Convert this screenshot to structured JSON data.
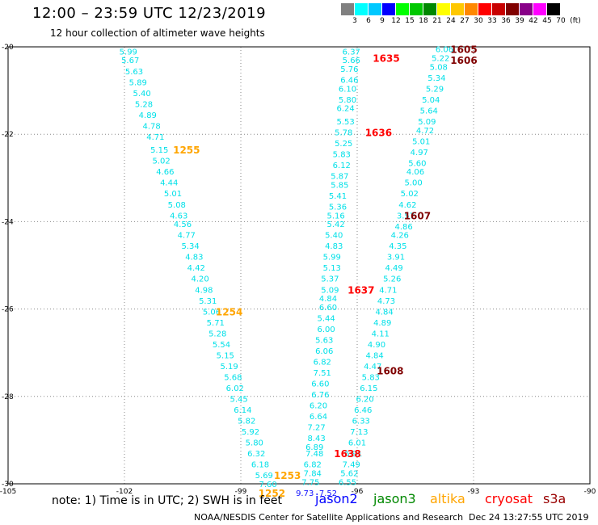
{
  "header": {
    "title": "12:00 – 23:59 UTC 12/23/2019",
    "subtitle": "12 hour collection of altimeter wave heights"
  },
  "legend": {
    "colors": [
      "#808080",
      "#00ffff",
      "#00c8ff",
      "#0000ff",
      "#00ff00",
      "#00c800",
      "#008800",
      "#ffff00",
      "#ffc800",
      "#ff8800",
      "#ff0000",
      "#c80000",
      "#800000",
      "#880088",
      "#ff00ff",
      "#000000"
    ],
    "labels": [
      "3",
      "6",
      "9",
      "12",
      "15",
      "18",
      "21",
      "24",
      "27",
      "30",
      "33",
      "36",
      "39",
      "42",
      "45",
      "70",
      "(ft)"
    ]
  },
  "chart_data": {
    "type": "scatter",
    "xlim": [
      -105,
      -90
    ],
    "ylim": [
      -30,
      -20
    ],
    "x_ticks": [
      -105,
      -102,
      -99,
      -96,
      -93,
      -90
    ],
    "y_ticks": [
      -20,
      -22,
      -24,
      -26,
      -28,
      -30
    ],
    "grid": true,
    "colors": {
      "cyan": "#00e0e8",
      "blue": "#1010ff",
      "orange": "#ffa500",
      "red": "#ff0000",
      "darkred": "#800000",
      "jason2": "#0000ff",
      "jason3": "#008800",
      "altika": "#ffa500",
      "cryosat": "#ff0000",
      "s3a": "#990000"
    },
    "tracks": [
      {
        "satellite": "altika",
        "points": [
          {
            "lon": -101.9,
            "lat": -20.1,
            "value": "5.99"
          },
          {
            "lon": -101.85,
            "lat": -20.3,
            "value": "5.67"
          },
          {
            "lon": -101.75,
            "lat": -20.55,
            "value": "5.63"
          },
          {
            "lon": -101.65,
            "lat": -20.8,
            "value": "5.89"
          },
          {
            "lon": -101.55,
            "lat": -21.05,
            "value": "5.40"
          },
          {
            "lon": -101.5,
            "lat": -21.3,
            "value": "5.28"
          },
          {
            "lon": -101.4,
            "lat": -21.55,
            "value": "4.89"
          },
          {
            "lon": -101.3,
            "lat": -21.8,
            "value": "4.78"
          },
          {
            "lon": -101.2,
            "lat": -22.05,
            "value": "4.71"
          },
          {
            "lon": -101.1,
            "lat": -22.35,
            "value": "5.15"
          },
          {
            "lon": -101.05,
            "lat": -22.6,
            "value": "5.02"
          },
          {
            "lon": -100.95,
            "lat": -22.85,
            "value": "4.66"
          },
          {
            "lon": -100.85,
            "lat": -23.1,
            "value": "4.44"
          },
          {
            "lon": -100.75,
            "lat": -23.35,
            "value": "5.01"
          },
          {
            "lon": -100.65,
            "lat": -23.6,
            "value": "5.08"
          },
          {
            "lon": -100.6,
            "lat": -23.85,
            "value": "4.63"
          },
          {
            "lon": -100.5,
            "lat": -24.05,
            "value": "4.56"
          },
          {
            "lon": -100.4,
            "lat": -24.3,
            "value": "4.77"
          },
          {
            "lon": -100.3,
            "lat": -24.55,
            "value": "5.34"
          },
          {
            "lon": -100.2,
            "lat": -24.8,
            "value": "4.83"
          },
          {
            "lon": -100.15,
            "lat": -25.05,
            "value": "4.42"
          },
          {
            "lon": -100.05,
            "lat": -25.3,
            "value": "4.20"
          },
          {
            "lon": -99.95,
            "lat": -25.55,
            "value": "4.98"
          },
          {
            "lon": -99.85,
            "lat": -25.8,
            "value": "5.31"
          },
          {
            "lon": -99.75,
            "lat": -26.05,
            "value": "5.06"
          },
          {
            "lon": -99.65,
            "lat": -26.3,
            "value": "5.71"
          },
          {
            "lon": -99.6,
            "lat": -26.55,
            "value": "5.28"
          },
          {
            "lon": -99.5,
            "lat": -26.8,
            "value": "5.54"
          },
          {
            "lon": -99.4,
            "lat": -27.05,
            "value": "5.15"
          },
          {
            "lon": -99.3,
            "lat": -27.3,
            "value": "5.19"
          },
          {
            "lon": -99.2,
            "lat": -27.55,
            "value": "5.68"
          },
          {
            "lon": -99.15,
            "lat": -27.8,
            "value": "6.02"
          },
          {
            "lon": -99.05,
            "lat": -28.05,
            "value": "5.45"
          },
          {
            "lon": -98.95,
            "lat": -28.3,
            "value": "6.14"
          },
          {
            "lon": -98.85,
            "lat": -28.55,
            "value": "5.82"
          },
          {
            "lon": -98.75,
            "lat": -28.8,
            "value": "5.92"
          },
          {
            "lon": -98.65,
            "lat": -29.05,
            "value": "5.80"
          },
          {
            "lon": -98.6,
            "lat": -29.3,
            "value": "6.32"
          },
          {
            "lon": -98.5,
            "lat": -29.55,
            "value": "6.18"
          },
          {
            "lon": -98.4,
            "lat": -29.8,
            "value": "5.69"
          },
          {
            "lon": -98.3,
            "lat": -30.0,
            "value": "7.60"
          }
        ]
      },
      {
        "satellite": "altika",
        "points": [
          {
            "lon": -96.15,
            "lat": -20.1,
            "value": "6.37"
          },
          {
            "lon": -96.15,
            "lat": -20.3,
            "value": "5.66"
          },
          {
            "lon": -96.2,
            "lat": -20.5,
            "value": "5.76"
          },
          {
            "lon": -96.2,
            "lat": -20.75,
            "value": "6.46"
          },
          {
            "lon": -96.25,
            "lat": -20.95,
            "value": "6.10"
          },
          {
            "lon": -96.25,
            "lat": -21.2,
            "value": "5.80"
          },
          {
            "lon": -96.3,
            "lat": -21.4,
            "value": "6.24"
          },
          {
            "lon": -96.3,
            "lat": -21.7,
            "value": "5.53"
          },
          {
            "lon": -96.35,
            "lat": -21.95,
            "value": "5.78"
          },
          {
            "lon": -96.35,
            "lat": -22.2,
            "value": "5.25"
          },
          {
            "lon": -96.4,
            "lat": -22.45,
            "value": "5.83"
          },
          {
            "lon": -96.4,
            "lat": -22.7,
            "value": "6.12"
          },
          {
            "lon": -96.45,
            "lat": -22.95,
            "value": "5.87"
          },
          {
            "lon": -96.45,
            "lat": -23.15,
            "value": "5.85"
          },
          {
            "lon": -96.5,
            "lat": -23.4,
            "value": "5.41"
          },
          {
            "lon": -96.5,
            "lat": -23.65,
            "value": "5.36"
          },
          {
            "lon": -96.55,
            "lat": -23.85,
            "value": "5.16"
          },
          {
            "lon": -96.55,
            "lat": -24.05,
            "value": "5.42"
          },
          {
            "lon": -96.6,
            "lat": -24.3,
            "value": "5.40"
          },
          {
            "lon": -96.6,
            "lat": -24.55,
            "value": "4.83"
          },
          {
            "lon": -96.65,
            "lat": -24.8,
            "value": "5.99"
          },
          {
            "lon": -96.65,
            "lat": -25.05,
            "value": "5.13"
          },
          {
            "lon": -96.7,
            "lat": -25.3,
            "value": "5.37"
          },
          {
            "lon": -96.7,
            "lat": -25.55,
            "value": "5.09"
          },
          {
            "lon": -96.75,
            "lat": -25.75,
            "value": "4.84"
          },
          {
            "lon": -96.75,
            "lat": -25.95,
            "value": "6.60"
          },
          {
            "lon": -96.8,
            "lat": -26.2,
            "value": "5.44"
          },
          {
            "lon": -96.8,
            "lat": -26.45,
            "value": "6.00"
          },
          {
            "lon": -96.85,
            "lat": -26.7,
            "value": "5.63"
          },
          {
            "lon": -96.85,
            "lat": -26.95,
            "value": "6.06"
          },
          {
            "lon": -96.9,
            "lat": -27.2,
            "value": "6.82"
          },
          {
            "lon": -96.9,
            "lat": -27.45,
            "value": "7.51"
          },
          {
            "lon": -96.95,
            "lat": -27.7,
            "value": "6.60"
          },
          {
            "lon": -96.95,
            "lat": -27.95,
            "value": "6.76"
          },
          {
            "lon": -97.0,
            "lat": -28.2,
            "value": "6.20"
          },
          {
            "lon": -97.0,
            "lat": -28.45,
            "value": "6.64"
          },
          {
            "lon": -97.05,
            "lat": -28.7,
            "value": "7.27"
          },
          {
            "lon": -97.05,
            "lat": -28.95,
            "value": "8.43"
          },
          {
            "lon": -97.1,
            "lat": -29.15,
            "value": "6.89"
          },
          {
            "lon": -97.1,
            "lat": -29.3,
            "value": "7.48"
          },
          {
            "lon": -97.15,
            "lat": -29.55,
            "value": "6.82"
          },
          {
            "lon": -97.15,
            "lat": -29.75,
            "value": "7.84"
          },
          {
            "lon": -97.2,
            "lat": -29.95,
            "value": "7.75"
          }
        ]
      },
      {
        "satellite": "altika",
        "points": [
          {
            "lon": -93.75,
            "lat": -20.05,
            "value": "6.06"
          },
          {
            "lon": -93.85,
            "lat": -20.25,
            "value": "5.22"
          },
          {
            "lon": -93.9,
            "lat": -20.45,
            "value": "5.08"
          },
          {
            "lon": -93.95,
            "lat": -20.7,
            "value": "5.34"
          },
          {
            "lon": -94.0,
            "lat": -20.95,
            "value": "5.29"
          },
          {
            "lon": -94.1,
            "lat": -21.2,
            "value": "5.04"
          },
          {
            "lon": -94.15,
            "lat": -21.45,
            "value": "5.64"
          },
          {
            "lon": -94.2,
            "lat": -21.7,
            "value": "5.09"
          },
          {
            "lon": -94.25,
            "lat": -21.9,
            "value": "4.72"
          },
          {
            "lon": -94.35,
            "lat": -22.15,
            "value": "5.01"
          },
          {
            "lon": -94.4,
            "lat": -22.4,
            "value": "4.97"
          },
          {
            "lon": -94.45,
            "lat": -22.65,
            "value": "5.60"
          },
          {
            "lon": -94.5,
            "lat": -22.85,
            "value": "4.06"
          },
          {
            "lon": -94.55,
            "lat": -23.1,
            "value": "5.00"
          },
          {
            "lon": -94.65,
            "lat": -23.35,
            "value": "5.02"
          },
          {
            "lon": -94.7,
            "lat": -23.6,
            "value": "4.62"
          },
          {
            "lon": -94.75,
            "lat": -23.85,
            "value": "3.57"
          },
          {
            "lon": -94.8,
            "lat": -24.1,
            "value": "4.86"
          },
          {
            "lon": -94.9,
            "lat": -24.3,
            "value": "4.26"
          },
          {
            "lon": -94.95,
            "lat": -24.55,
            "value": "4.35"
          },
          {
            "lon": -95.0,
            "lat": -24.8,
            "value": "3.91"
          },
          {
            "lon": -95.05,
            "lat": -25.05,
            "value": "4.49"
          },
          {
            "lon": -95.1,
            "lat": -25.3,
            "value": "5.26"
          },
          {
            "lon": -95.2,
            "lat": -25.55,
            "value": "4.71"
          },
          {
            "lon": -95.25,
            "lat": -25.8,
            "value": "4.73"
          },
          {
            "lon": -95.3,
            "lat": -26.05,
            "value": "4.84"
          },
          {
            "lon": -95.35,
            "lat": -26.3,
            "value": "4.89"
          },
          {
            "lon": -95.4,
            "lat": -26.55,
            "value": "4.11"
          },
          {
            "lon": -95.5,
            "lat": -26.8,
            "value": "4.90"
          },
          {
            "lon": -95.55,
            "lat": -27.05,
            "value": "4.84"
          },
          {
            "lon": -95.6,
            "lat": -27.3,
            "value": "4.47"
          },
          {
            "lon": -95.65,
            "lat": -27.55,
            "value": "5.83"
          },
          {
            "lon": -95.7,
            "lat": -27.8,
            "value": "6.15"
          },
          {
            "lon": -95.8,
            "lat": -28.05,
            "value": "6.20"
          },
          {
            "lon": -95.85,
            "lat": -28.3,
            "value": "6.46"
          },
          {
            "lon": -95.9,
            "lat": -28.55,
            "value": "6.33"
          },
          {
            "lon": -95.95,
            "lat": -28.8,
            "value": "7.13"
          },
          {
            "lon": -96.0,
            "lat": -29.05,
            "value": "6.01"
          },
          {
            "lon": -96.1,
            "lat": -29.3,
            "value": "6.91"
          },
          {
            "lon": -96.15,
            "lat": -29.55,
            "value": "7.49"
          },
          {
            "lon": -96.2,
            "lat": -29.75,
            "value": "5.62"
          },
          {
            "lon": -96.25,
            "lat": -29.95,
            "value": "6.55"
          }
        ]
      },
      {
        "satellite": "jason2",
        "points": [
          {
            "lon": -97.35,
            "lat": -30.2,
            "value": "9.73"
          },
          {
            "lon": -96.75,
            "lat": -30.2,
            "value": "7.52"
          }
        ]
      }
    ],
    "time_labels": [
      {
        "lon": -100.4,
        "lat": -22.35,
        "text": "1255",
        "color": "orange"
      },
      {
        "lon": -99.3,
        "lat": -26.05,
        "text": "1254",
        "color": "orange"
      },
      {
        "lon": -97.8,
        "lat": -29.8,
        "text": "1253",
        "color": "orange"
      },
      {
        "lon": -98.2,
        "lat": -30.2,
        "text": "1252",
        "color": "orange"
      },
      {
        "lon": -95.25,
        "lat": -20.25,
        "text": "1635",
        "color": "red"
      },
      {
        "lon": -95.45,
        "lat": -21.95,
        "text": "1636",
        "color": "red"
      },
      {
        "lon": -95.9,
        "lat": -25.55,
        "text": "1637",
        "color": "red"
      },
      {
        "lon": -96.25,
        "lat": -29.3,
        "text": "1638",
        "color": "red"
      },
      {
        "lon": -93.25,
        "lat": -20.05,
        "text": "1605",
        "color": "darkred"
      },
      {
        "lon": -93.25,
        "lat": -20.3,
        "text": "1606",
        "color": "darkred"
      },
      {
        "lon": -94.45,
        "lat": -23.85,
        "text": "1607",
        "color": "darkred"
      },
      {
        "lon": -95.15,
        "lat": -27.4,
        "text": "1608",
        "color": "darkred"
      }
    ]
  },
  "footer": {
    "note": "note:  1) Time is in UTC;  2) SWH is in feet",
    "satellites": [
      {
        "name": "jason2",
        "color": "#0000ff"
      },
      {
        "name": "jason3",
        "color": "#008800"
      },
      {
        "name": "altika",
        "color": "#ffa500"
      },
      {
        "name": "cryosat",
        "color": "#ff0000"
      },
      {
        "name": "s3a",
        "color": "#990000"
      }
    ],
    "credit": "NOAA/NESDIS Center for Satellite Applications and Research",
    "timestamp": "Dec 24 13:27:55 UTC 2019"
  }
}
